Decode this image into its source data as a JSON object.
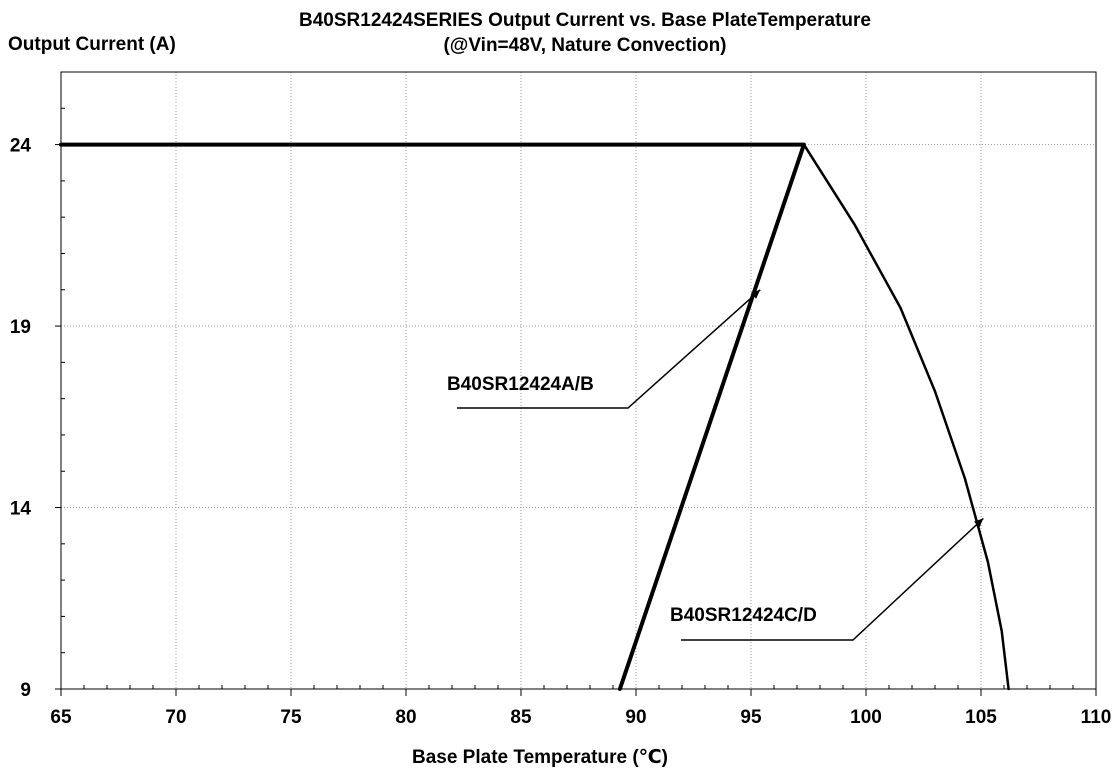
{
  "chart_data": {
    "type": "line",
    "title": "B40SR12424SERIES  Output Current vs. Base PlateTemperature",
    "subtitle": "(@Vin=48V, Nature Convection)",
    "xlabel": "Base Plate Temperature (℃)",
    "ylabel": "Output Current (A)",
    "xlim": [
      65,
      110
    ],
    "ylim": [
      9,
      26
    ],
    "x_ticks": [
      65,
      70,
      75,
      80,
      85,
      90,
      95,
      100,
      105,
      110
    ],
    "y_ticks": [
      9,
      14,
      19,
      24
    ],
    "grid": true,
    "series": [
      {
        "name": "B40SR12424A/B",
        "points": [
          [
            65,
            24
          ],
          [
            97.3,
            24
          ],
          [
            89.3,
            9
          ]
        ]
      },
      {
        "name": "B40SR12424C/D",
        "points": [
          [
            97.3,
            24
          ],
          [
            99.5,
            21.8
          ],
          [
            101.5,
            19.5
          ],
          [
            103,
            17.2
          ],
          [
            104.3,
            14.8
          ],
          [
            105.3,
            12.5
          ],
          [
            105.9,
            10.6
          ],
          [
            106.2,
            9
          ]
        ]
      }
    ],
    "annotations": [
      {
        "text": "B40SR12424A/B",
        "target": [
          95.4,
          20.0
        ]
      },
      {
        "text": "B40SR12424C/D",
        "target": [
          105.1,
          13.7
        ]
      }
    ]
  },
  "colors": {
    "line": "#000000",
    "grid": "#9a9a9a",
    "background": "#ffffff"
  }
}
